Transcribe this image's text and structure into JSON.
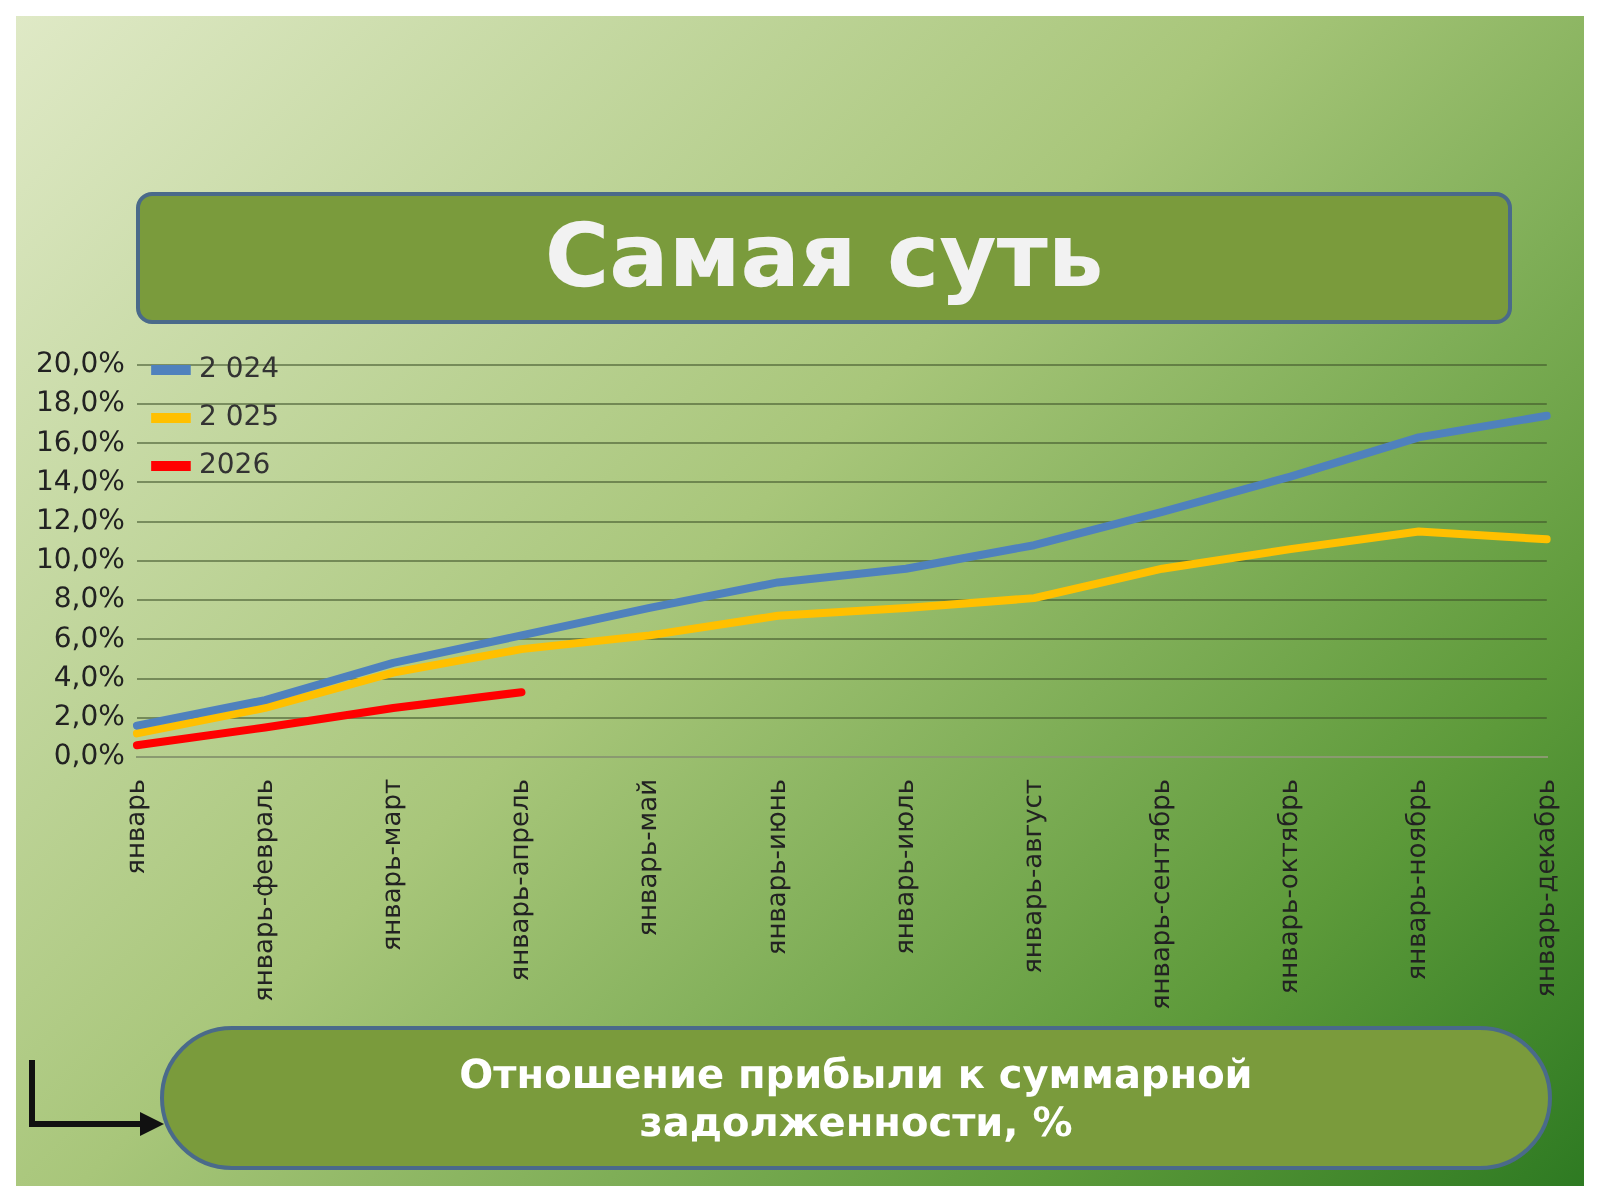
{
  "chart_data": {
    "type": "line",
    "title": "Самая суть",
    "subtitle": "Отношение прибыли к суммарной задолженности, %",
    "categories": [
      "январь",
      "январь-февраль",
      "январь-март",
      "январь-апрель",
      "январь-май",
      "январь-июнь",
      "январь-июль",
      "январь-август",
      "январь-сентябрь",
      "январь-октябрь",
      "январь-ноябрь",
      "январь-декабрь"
    ],
    "series": [
      {
        "name": "2 024",
        "color": "#4f81bd",
        "values": [
          1.6,
          2.9,
          4.8,
          6.2,
          7.6,
          8.9,
          9.6,
          10.8,
          12.5,
          14.3,
          16.3,
          17.4
        ]
      },
      {
        "name": "2 025",
        "color": "#ffc000",
        "values": [
          1.2,
          2.5,
          4.3,
          5.5,
          6.2,
          7.2,
          7.6,
          8.1,
          9.6,
          10.6,
          11.5,
          11.1
        ]
      },
      {
        "name": "2026",
        "color": "#ff0000",
        "values": [
          0.6,
          1.5,
          2.5,
          3.3,
          null,
          null,
          null,
          null,
          null,
          null,
          null,
          null
        ]
      }
    ],
    "ylim": [
      0,
      20
    ],
    "yticks": [
      {
        "value": 0,
        "label": "0,0%"
      },
      {
        "value": 2,
        "label": "2,0%"
      },
      {
        "value": 4,
        "label": "4,0%"
      },
      {
        "value": 6,
        "label": "6,0%"
      },
      {
        "value": 8,
        "label": "8,0%"
      },
      {
        "value": 10,
        "label": "10,0%"
      },
      {
        "value": 12,
        "label": "12,0%"
      },
      {
        "value": 14,
        "label": "14,0%"
      },
      {
        "value": 16,
        "label": "16,0%"
      },
      {
        "value": 18,
        "label": "18,0%"
      },
      {
        "value": 20,
        "label": "20,0%"
      }
    ],
    "grid": "y",
    "legend": "top left",
    "marker": "none",
    "line_style": "solid"
  }
}
